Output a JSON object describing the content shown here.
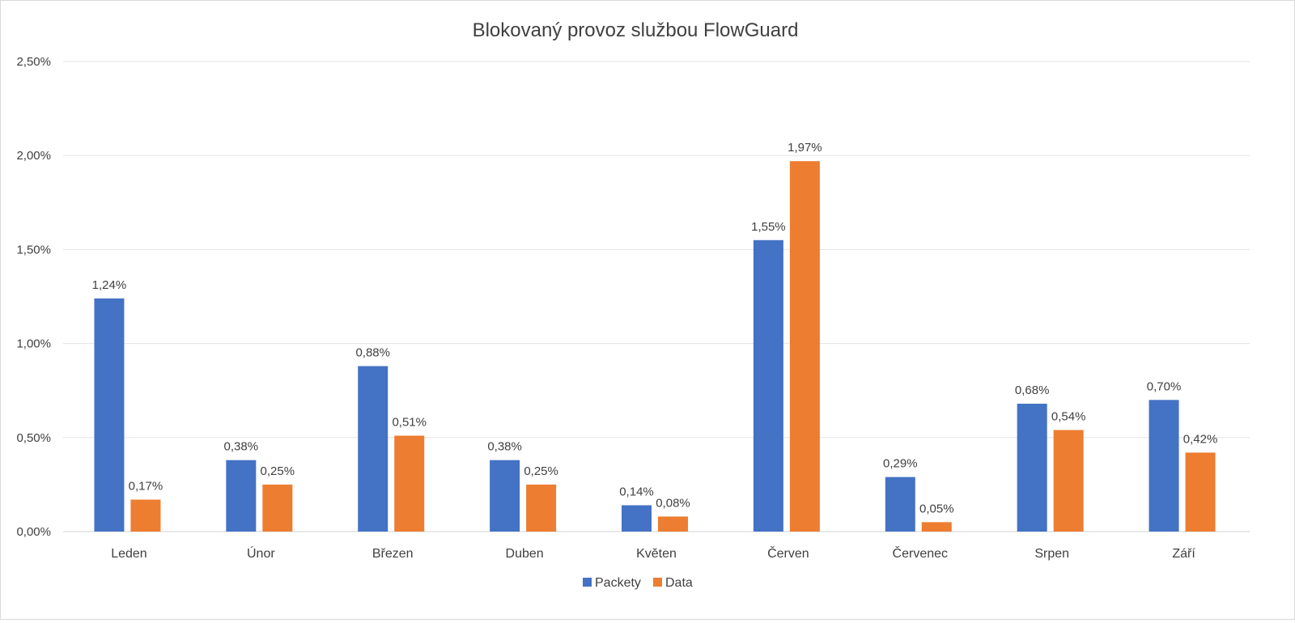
{
  "chart_data": {
    "type": "bar",
    "title": "Blokovaný provoz službou FlowGuard",
    "xlabel": "",
    "ylabel": "",
    "categories": [
      "Leden",
      "Únor",
      "Březen",
      "Duben",
      "Květen",
      "Červen",
      "Červenec",
      "Srpen",
      "Září"
    ],
    "series": [
      {
        "name": "Packety",
        "color": "#4472C4",
        "values": [
          1.24,
          0.38,
          0.88,
          0.38,
          0.14,
          1.55,
          0.29,
          0.68,
          0.7
        ],
        "labels": [
          "1,24%",
          "0,38%",
          "0,88%",
          "0,38%",
          "0,14%",
          "1,55%",
          "0,29%",
          "0,68%",
          "0,70%"
        ]
      },
      {
        "name": "Data",
        "color": "#ED7D31",
        "values": [
          0.17,
          0.25,
          0.51,
          0.25,
          0.08,
          1.97,
          0.05,
          0.54,
          0.42
        ],
        "labels": [
          "0,17%",
          "0,25%",
          "0,51%",
          "0,25%",
          "0,08%",
          "1,97%",
          "0,05%",
          "0,54%",
          "0,42%"
        ]
      }
    ],
    "ylim": [
      0,
      2.5
    ],
    "yticks": [
      0,
      0.5,
      1.0,
      1.5,
      2.0,
      2.5
    ],
    "ytick_labels": [
      "0,00%",
      "0,50%",
      "1,00%",
      "1,50%",
      "2,00%",
      "2,50%"
    ],
    "grid": true,
    "legend": "bottom-center"
  }
}
